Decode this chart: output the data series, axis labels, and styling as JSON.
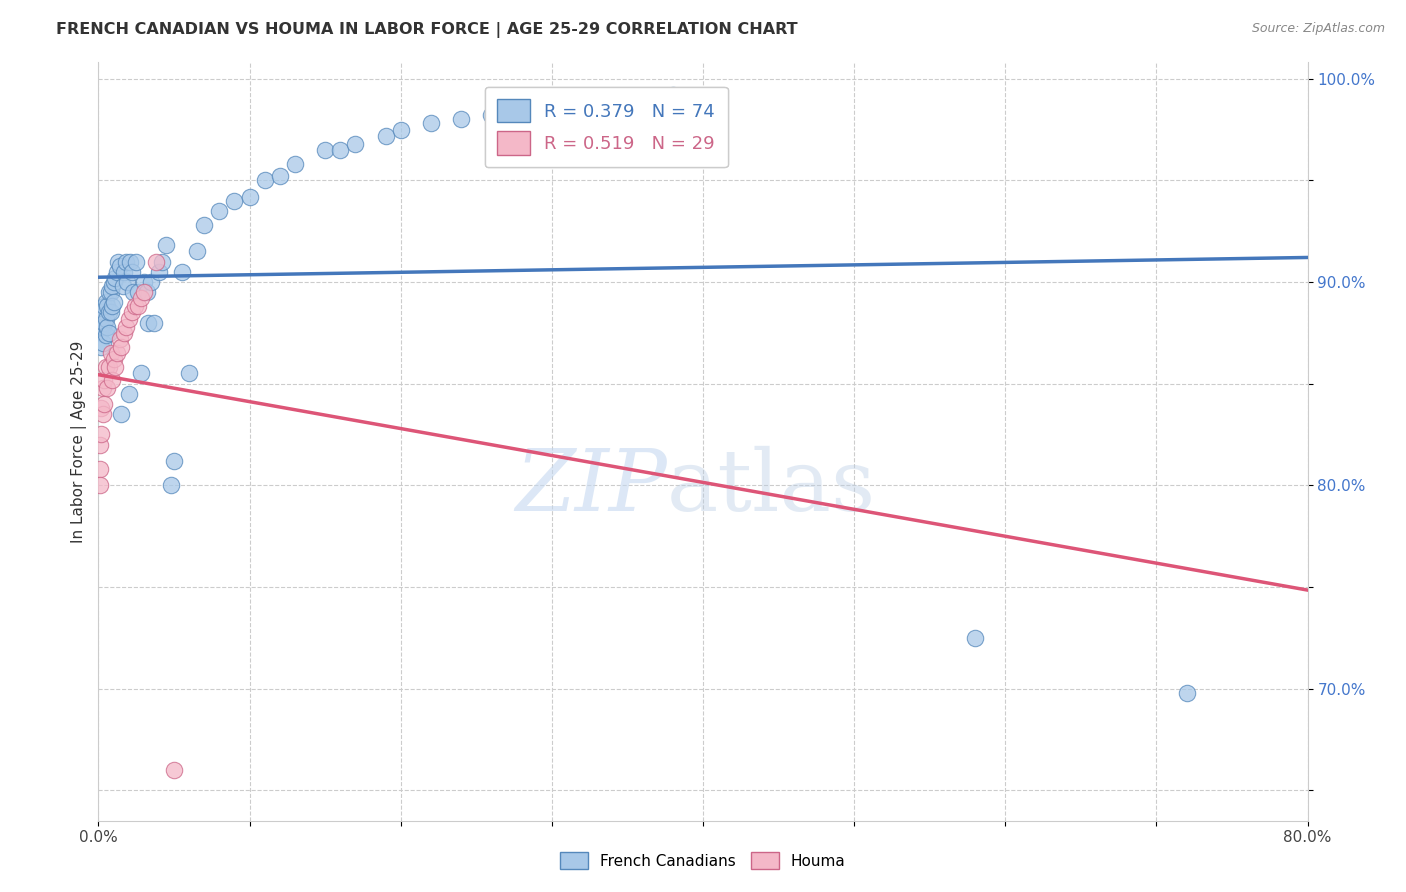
{
  "title": "FRENCH CANADIAN VS HOUMA IN LABOR FORCE | AGE 25-29 CORRELATION CHART",
  "source": "Source: ZipAtlas.com",
  "xlabel": "",
  "ylabel": "In Labor Force | Age 25-29",
  "xlim": [
    0.0,
    0.8
  ],
  "ylim": [
    0.635,
    1.008
  ],
  "xticks": [
    0.0,
    0.1,
    0.2,
    0.3,
    0.4,
    0.5,
    0.6,
    0.7,
    0.8
  ],
  "xticklabels": [
    "0.0%",
    "",
    "",
    "",
    "",
    "",
    "",
    "",
    "80.0%"
  ],
  "ytick_positions": [
    0.65,
    0.7,
    0.75,
    0.8,
    0.85,
    0.9,
    0.95,
    1.0
  ],
  "ytick_labels": [
    "",
    "70.0%",
    "",
    "80.0%",
    "",
    "90.0%",
    "",
    "100.0%"
  ],
  "blue_R": 0.379,
  "blue_N": 74,
  "pink_R": 0.519,
  "pink_N": 29,
  "blue_color": "#a8c8e8",
  "pink_color": "#f4b8c8",
  "blue_edge_color": "#5588bb",
  "pink_edge_color": "#cc6688",
  "blue_line_color": "#4477bb",
  "pink_line_color": "#dd5577",
  "watermark_zip": "ZIP",
  "watermark_atlas": "atlas",
  "legend_labels": [
    "French Canadians",
    "Houma"
  ],
  "blue_x": [
    0.001,
    0.001,
    0.002,
    0.002,
    0.003,
    0.003,
    0.003,
    0.004,
    0.004,
    0.005,
    0.005,
    0.005,
    0.006,
    0.006,
    0.007,
    0.007,
    0.007,
    0.008,
    0.008,
    0.009,
    0.009,
    0.01,
    0.01,
    0.011,
    0.012,
    0.013,
    0.014,
    0.015,
    0.016,
    0.017,
    0.018,
    0.019,
    0.02,
    0.021,
    0.022,
    0.023,
    0.025,
    0.026,
    0.028,
    0.03,
    0.032,
    0.033,
    0.035,
    0.037,
    0.04,
    0.042,
    0.045,
    0.048,
    0.05,
    0.055,
    0.06,
    0.065,
    0.07,
    0.08,
    0.09,
    0.1,
    0.11,
    0.12,
    0.13,
    0.15,
    0.16,
    0.17,
    0.19,
    0.2,
    0.22,
    0.24,
    0.26,
    0.28,
    0.31,
    0.34,
    0.36,
    0.38,
    0.58,
    0.72
  ],
  "blue_y": [
    0.883,
    0.875,
    0.878,
    0.868,
    0.885,
    0.878,
    0.87,
    0.888,
    0.88,
    0.89,
    0.882,
    0.874,
    0.888,
    0.878,
    0.895,
    0.885,
    0.875,
    0.895,
    0.885,
    0.898,
    0.888,
    0.9,
    0.89,
    0.902,
    0.905,
    0.91,
    0.908,
    0.835,
    0.898,
    0.905,
    0.91,
    0.9,
    0.845,
    0.91,
    0.905,
    0.895,
    0.91,
    0.895,
    0.855,
    0.9,
    0.895,
    0.88,
    0.9,
    0.88,
    0.905,
    0.91,
    0.918,
    0.8,
    0.812,
    0.905,
    0.855,
    0.915,
    0.928,
    0.935,
    0.94,
    0.942,
    0.95,
    0.952,
    0.958,
    0.965,
    0.965,
    0.968,
    0.972,
    0.975,
    0.978,
    0.98,
    0.982,
    0.985,
    0.988,
    0.99,
    0.99,
    0.992,
    0.725,
    0.698
  ],
  "pink_x": [
    0.001,
    0.001,
    0.001,
    0.002,
    0.002,
    0.003,
    0.003,
    0.004,
    0.004,
    0.005,
    0.006,
    0.007,
    0.008,
    0.009,
    0.01,
    0.011,
    0.012,
    0.014,
    0.015,
    0.017,
    0.018,
    0.02,
    0.022,
    0.024,
    0.026,
    0.028,
    0.03,
    0.038,
    0.05
  ],
  "pink_y": [
    0.808,
    0.82,
    0.8,
    0.838,
    0.825,
    0.848,
    0.835,
    0.852,
    0.84,
    0.858,
    0.848,
    0.858,
    0.865,
    0.852,
    0.862,
    0.858,
    0.865,
    0.872,
    0.868,
    0.875,
    0.878,
    0.882,
    0.885,
    0.888,
    0.888,
    0.892,
    0.895,
    0.91,
    0.66
  ]
}
